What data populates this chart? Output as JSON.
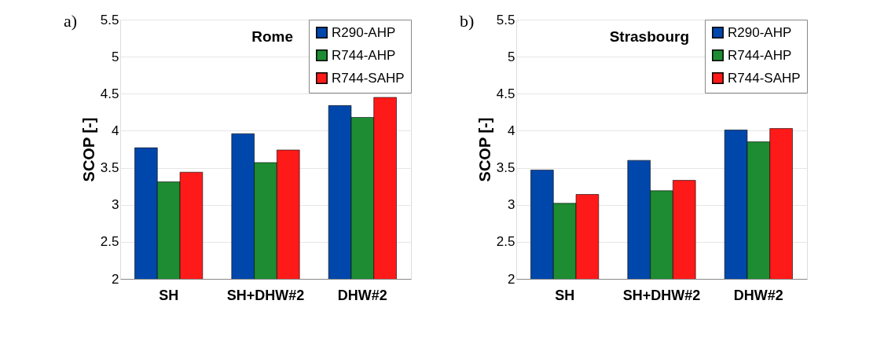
{
  "chart_data": [
    {
      "type": "bar",
      "annotations": [
        "a)",
        "Rome"
      ],
      "ylabel": "SCOP [-]",
      "categories": [
        "SH",
        "SH+DHW#2",
        "DHW#2"
      ],
      "series": [
        {
          "name": "R290-AHP",
          "color": "#0047ab",
          "values": [
            3.77,
            3.96,
            4.34
          ]
        },
        {
          "name": "R744-AHP",
          "color": "#1e8c32",
          "values": [
            3.31,
            3.57,
            4.18
          ]
        },
        {
          "name": "R744-SAHP",
          "color": "#ff1a1a",
          "values": [
            3.44,
            3.74,
            4.45
          ]
        }
      ],
      "ylim": [
        2,
        5.5
      ],
      "yticks": [
        2,
        2.5,
        3,
        3.5,
        4,
        4.5,
        5,
        5.5
      ],
      "grid": "y",
      "legend": "top right"
    },
    {
      "type": "bar",
      "annotations": [
        "b)",
        "Strasbourg"
      ],
      "ylabel": "SCOP [-]",
      "categories": [
        "SH",
        "SH+DHW#2",
        "DHW#2"
      ],
      "series": [
        {
          "name": "R290-AHP",
          "color": "#0047ab",
          "values": [
            3.47,
            3.6,
            4.01
          ]
        },
        {
          "name": "R744-AHP",
          "color": "#1e8c32",
          "values": [
            3.02,
            3.19,
            3.85
          ]
        },
        {
          "name": "R744-SAHP",
          "color": "#ff1a1a",
          "values": [
            3.14,
            3.33,
            4.03
          ]
        }
      ],
      "ylim": [
        2,
        5.5
      ],
      "yticks": [
        2,
        2.5,
        3,
        3.5,
        4,
        4.5,
        5,
        5.5
      ],
      "grid": "y",
      "legend": "top right"
    }
  ]
}
